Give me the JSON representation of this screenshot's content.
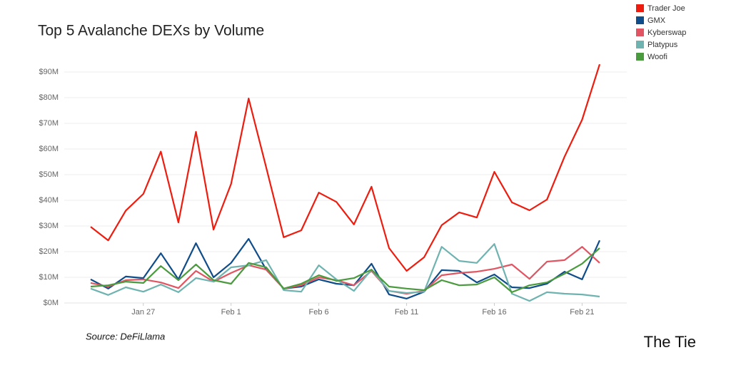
{
  "chart_data": {
    "type": "line",
    "title": "Top 5 Avalanche DEXs by Volume",
    "source": "Source: DeFiLlama",
    "logo": "The Tie",
    "categories": [
      null,
      null,
      null,
      "Jan 27",
      null,
      null,
      null,
      null,
      "Feb 1",
      null,
      null,
      null,
      null,
      "Feb 6",
      null,
      null,
      null,
      null,
      "Feb 11",
      null,
      null,
      null,
      null,
      "Feb 16",
      null,
      null,
      null,
      null,
      "Feb 21",
      null
    ],
    "ylim": [
      0,
      95
    ],
    "yticks": [
      {
        "value": 0,
        "label": "$0M"
      },
      {
        "value": 10,
        "label": "$10M"
      },
      {
        "value": 20,
        "label": "$20M"
      },
      {
        "value": 30,
        "label": "$30M"
      },
      {
        "value": 40,
        "label": "$40M"
      },
      {
        "value": 50,
        "label": "$50M"
      },
      {
        "value": 60,
        "label": "$60M"
      },
      {
        "value": 70,
        "label": "$70M"
      },
      {
        "value": 80,
        "label": "$80M"
      },
      {
        "value": 90,
        "label": "$90M"
      }
    ],
    "grid": true,
    "legend": "top-right",
    "series": [
      {
        "name": "Trader Joe",
        "color": "#ee1c0e",
        "values": [
          29.7,
          24.4,
          36,
          42.5,
          59,
          31.4,
          66.7,
          28.6,
          46.4,
          79.7,
          52.8,
          25.6,
          28.3,
          43,
          39.4,
          30.6,
          45.3,
          21.4,
          12.5,
          17.8,
          30.3,
          35.3,
          33.3,
          51.1,
          39.2,
          36.1,
          40.3,
          57,
          71.4,
          93
        ]
      },
      {
        "name": "GMX",
        "color": "#0f4c8a",
        "values": [
          9.2,
          5.6,
          10.3,
          9.7,
          19.4,
          9.2,
          23.3,
          10,
          15.6,
          25,
          13,
          5.6,
          6.4,
          9.2,
          7.5,
          6.9,
          15.3,
          3.3,
          1.7,
          4.4,
          12.8,
          12.5,
          8,
          11.1,
          6.1,
          5.8,
          7.5,
          12.2,
          9.2,
          24.4
        ]
      },
      {
        "name": "Kyberswap",
        "color": "#e05561",
        "values": [
          7.8,
          6.4,
          8.9,
          9.2,
          8,
          5.8,
          12.5,
          8.3,
          11.7,
          14.7,
          13,
          5.6,
          6.9,
          10,
          8.9,
          6.9,
          12.5,
          4.7,
          3.6,
          4.7,
          10.8,
          11.7,
          12.2,
          13.3,
          15,
          9.4,
          16.1,
          16.7,
          21.9,
          15.6
        ]
      },
      {
        "name": "Platypus",
        "color": "#6fb3b0",
        "values": [
          5.6,
          3.1,
          6.1,
          4.4,
          7.2,
          4.2,
          9.7,
          8.3,
          13.9,
          14.7,
          16.7,
          5,
          4.4,
          14.7,
          9.2,
          4.7,
          13,
          4.7,
          3.9,
          4.4,
          21.9,
          16.4,
          15.6,
          23,
          3.6,
          0.8,
          4.2,
          3.6,
          3.3,
          2.5
        ]
      },
      {
        "name": "Woofi",
        "color": "#4a9a3e",
        "values": [
          6.4,
          6.9,
          8.3,
          7.8,
          14.4,
          8.9,
          15,
          8.9,
          7.5,
          15.6,
          13.9,
          5.6,
          7.5,
          10.8,
          8.6,
          9.7,
          13,
          6.4,
          5.6,
          5,
          8.9,
          6.9,
          7.2,
          10,
          4.2,
          6.9,
          8,
          11.4,
          15.3,
          21.4
        ]
      }
    ]
  }
}
